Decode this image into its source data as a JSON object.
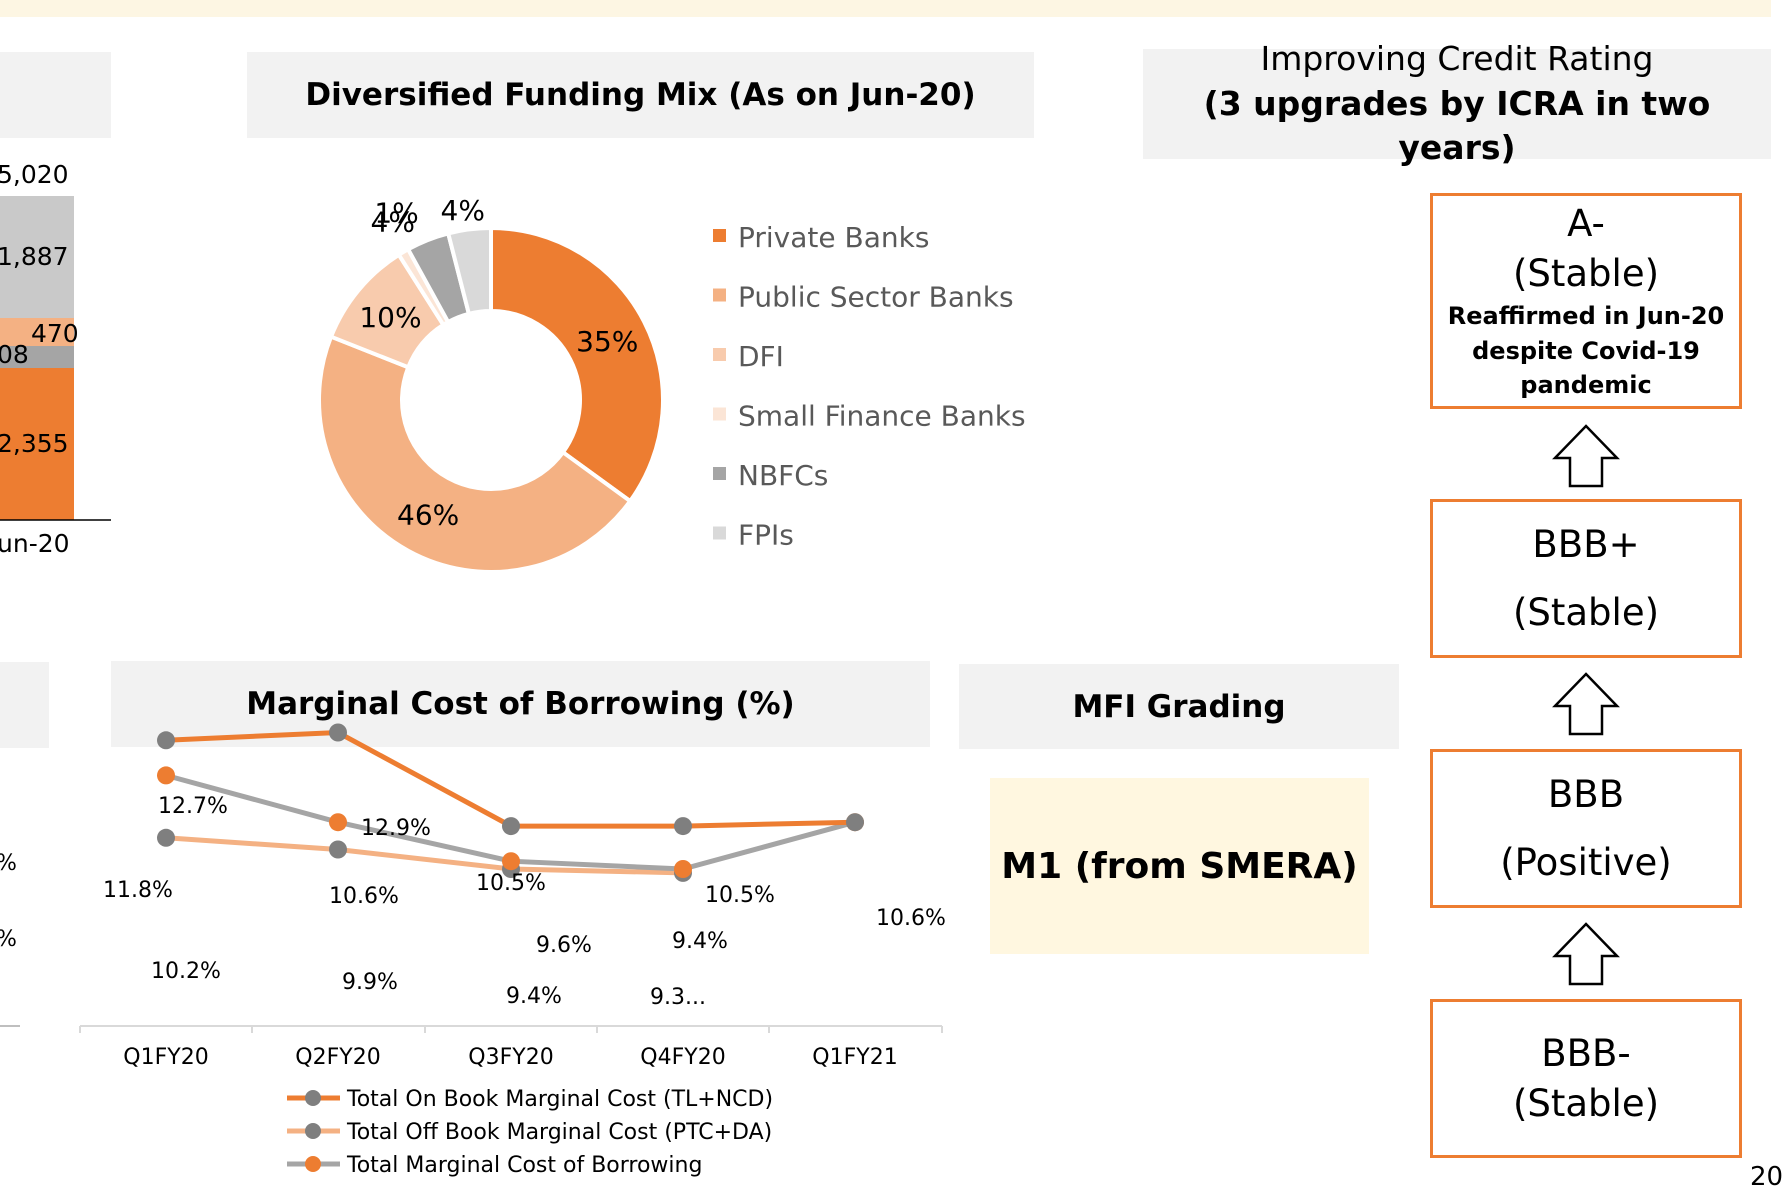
{
  "left_bar_fragment": {
    "total": "5,020",
    "segments": [
      "1,887",
      "470",
      "08",
      "2,355"
    ],
    "category": "un-20",
    "colors": {
      "top": "#c9c9c9",
      "mid": "#f4b183",
      "grey": "#a5a5a5",
      "base": "#ed7d31"
    }
  },
  "left_line_fragment": {
    "labels": [
      "%",
      "%"
    ]
  },
  "funding_mix": {
    "title": "Diversified Funding Mix (As on Jun-20)",
    "chart_data": {
      "type": "pie",
      "subtype": "donut",
      "title": "Diversified Funding Mix (As on Jun-20)",
      "slices": [
        {
          "label": "Private Banks",
          "value": 35,
          "display": "35%",
          "color": "#ed7d31"
        },
        {
          "label": "Public Sector Banks",
          "value": 46,
          "display": "46%",
          "color": "#f4b183"
        },
        {
          "label": "DFI",
          "value": 10,
          "display": "10%",
          "color": "#f8cbad"
        },
        {
          "label": "Small Finance Banks",
          "value": 1,
          "display": "1%",
          "color": "#fbe5d6"
        },
        {
          "label": "NBFCs",
          "value": 4,
          "display": "4%",
          "color": "#a5a5a5"
        },
        {
          "label": "FPIs",
          "value": 4,
          "display": "4%",
          "color": "#d9d9d9"
        }
      ],
      "legend_position": "right"
    }
  },
  "credit_rating": {
    "title_line1": "Improving Credit Rating",
    "title_line2": "(3 upgrades by ICRA in two years)",
    "boxes": [
      {
        "rating": "A-",
        "outlook": "(Stable)",
        "note": [
          "Reaffirmed in Jun-20",
          "despite Covid-19",
          "pandemic"
        ]
      },
      {
        "rating": "BBB+",
        "outlook": "(Stable)"
      },
      {
        "rating": "BBB",
        "outlook": "(Positive)"
      },
      {
        "rating": "BBB-",
        "outlook": "(Stable)"
      }
    ],
    "accent_color": "#ed7d31"
  },
  "marginal_cost": {
    "title": "Marginal Cost of Borrowing (%)",
    "chart_data": {
      "type": "line",
      "title": "Marginal Cost of Borrowing (%)",
      "categories": [
        "Q1FY20",
        "Q2FY20",
        "Q3FY20",
        "Q4FY20",
        "Q1FY21"
      ],
      "series": [
        {
          "name": "Total On Book Marginal Cost (TL+NCD)",
          "values": [
            12.7,
            12.9,
            10.5,
            10.5,
            10.6
          ],
          "line_color": "#ed7d31",
          "marker_color": "#7f7f7f",
          "labels": [
            "12.7%",
            "12.9%",
            "10.5%",
            "10.5%",
            "10.6%"
          ]
        },
        {
          "name": "Total Off Book Marginal Cost (PTC+DA)",
          "values": [
            10.2,
            9.9,
            9.4,
            9.3,
            null
          ],
          "line_color": "#f4b183",
          "marker_color": "#7f7f7f",
          "labels": [
            "10.2%",
            "9.9%",
            "9.4%",
            "9.3...",
            ""
          ]
        },
        {
          "name": "Total Marginal Cost of Borrowing",
          "values": [
            11.8,
            10.6,
            9.6,
            9.4,
            10.6
          ],
          "line_color": "#a5a5a5",
          "marker_color": "#ed7d31",
          "labels": [
            "11.8%",
            "10.6%",
            "9.6%",
            "9.4%",
            ""
          ]
        }
      ],
      "legend_position": "bottom"
    }
  },
  "mfi_grading": {
    "title": "MFI Grading",
    "value": "M1 (from SMERA)"
  },
  "page_number": "20"
}
